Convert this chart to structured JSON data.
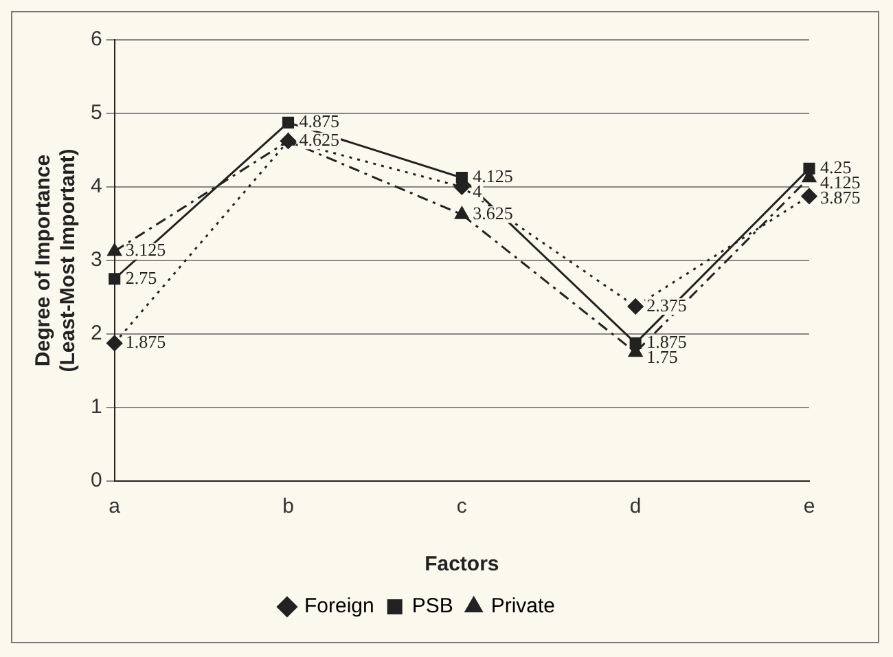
{
  "chart_data": {
    "type": "line",
    "xlabel": "Factors",
    "ylabel": "Degree of Importance\n(Least-Most Important)",
    "categories": [
      "a",
      "b",
      "c",
      "d",
      "e"
    ],
    "ylim": [
      0,
      6
    ],
    "yticks": [
      0,
      1,
      2,
      3,
      4,
      5,
      6
    ],
    "grid": "y",
    "legend": "bottom",
    "series": [
      {
        "name": "Foreign",
        "color": "#222222",
        "marker": "diamond",
        "line_style": "dotted",
        "values": [
          1.875,
          4.625,
          4,
          2.375,
          3.875
        ],
        "value_labels": [
          "1.875",
          null,
          "4",
          "2.375",
          "3.875"
        ]
      },
      {
        "name": "PSB",
        "color": "#222222",
        "marker": "square",
        "line_style": "solid",
        "values": [
          2.75,
          4.875,
          4.125,
          1.875,
          4.25
        ],
        "value_labels": [
          "2.75",
          "4.875",
          "4.125",
          "1.875",
          "4.25"
        ]
      },
      {
        "name": "Private",
        "color": "#222222",
        "marker": "triangle",
        "line_style": "dashed",
        "values": [
          3.125,
          4.625,
          3.625,
          1.75,
          4.125
        ],
        "value_labels": [
          "3.125",
          "4.625",
          "3.625",
          "1.75",
          "4.125"
        ]
      }
    ]
  }
}
